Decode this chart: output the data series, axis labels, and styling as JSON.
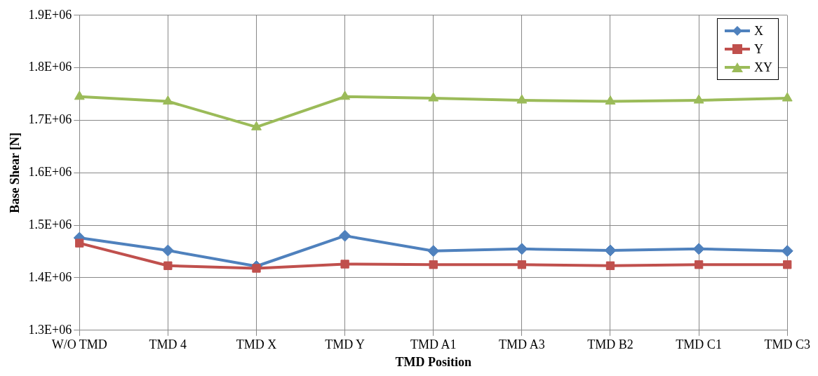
{
  "chart_data": {
    "type": "line",
    "xlabel": "TMD Position",
    "ylabel": "Base Shear [N]",
    "categories": [
      "W/O TMD",
      "TMD 4",
      "TMD X",
      "TMD Y",
      "TMD A1",
      "TMD A3",
      "TMD B2",
      "TMD C1",
      "TMD C3"
    ],
    "series": [
      {
        "name": "X",
        "color": "#4f81bd",
        "marker": "diamond",
        "values": [
          1476000,
          1452000,
          1422000,
          1480000,
          1451000,
          1455000,
          1452000,
          1455000,
          1451000
        ]
      },
      {
        "name": "Y",
        "color": "#c0504d",
        "marker": "square",
        "values": [
          1466000,
          1423000,
          1418000,
          1426000,
          1425000,
          1425000,
          1423000,
          1425000,
          1425000
        ]
      },
      {
        "name": "XY",
        "color": "#9bbb59",
        "marker": "triangle",
        "values": [
          1745000,
          1736000,
          1687000,
          1745000,
          1742000,
          1738000,
          1736000,
          1738000,
          1742000
        ]
      }
    ],
    "ylim": [
      1300000,
      1900000
    ],
    "yticks": [
      {
        "value": 1300000,
        "label": "1.3E+06"
      },
      {
        "value": 1400000,
        "label": "1.4E+06"
      },
      {
        "value": 1500000,
        "label": "1.5E+06"
      },
      {
        "value": 1600000,
        "label": "1.6E+06"
      },
      {
        "value": 1700000,
        "label": "1.7E+06"
      },
      {
        "value": 1800000,
        "label": "1.8E+06"
      },
      {
        "value": 1900000,
        "label": "1.9E+06"
      }
    ],
    "grid": true,
    "legend": "top right"
  }
}
